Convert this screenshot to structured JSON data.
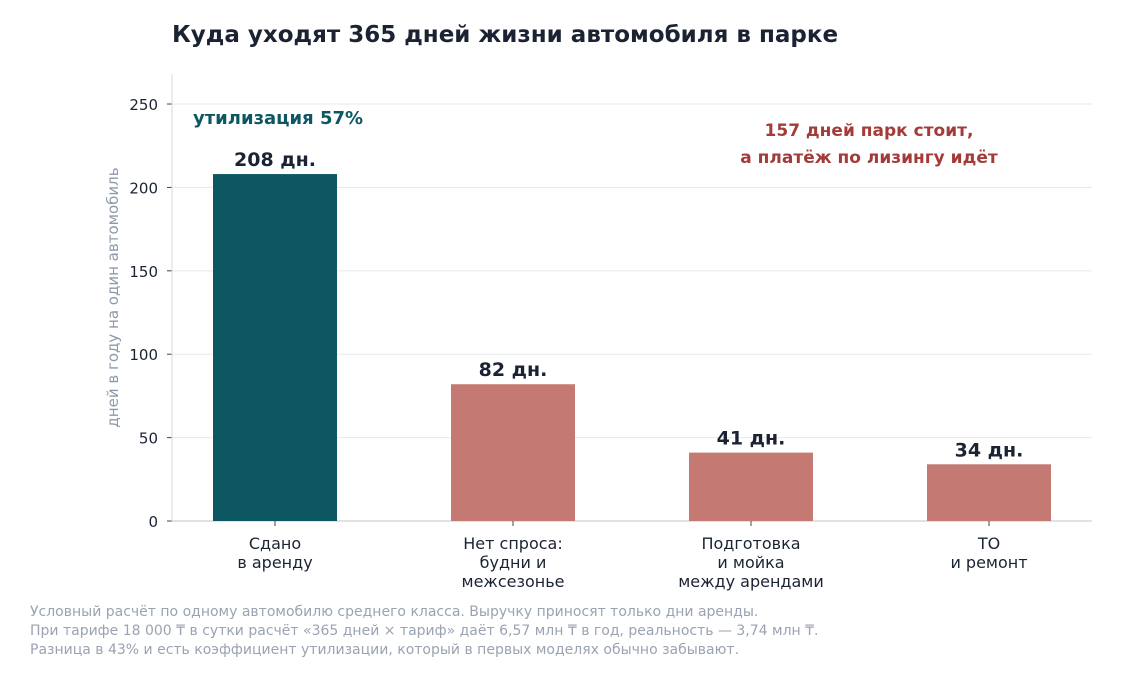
{
  "chart_data": {
    "type": "bar",
    "title": "Куда уходят 365 дней жизни автомобиля в парке",
    "ylabel": "дней в году на один автомобиль",
    "xlabel": "",
    "ylim": [
      0,
      268
    ],
    "yticks": [
      0,
      50,
      100,
      150,
      200,
      250
    ],
    "grid": true,
    "categories": [
      [
        "Сдано",
        "в аренду"
      ],
      [
        "Нет спроса:",
        "будни и",
        "межсезонье"
      ],
      [
        "Подготовка",
        "и мойка",
        "между арендами"
      ],
      [
        "ТО",
        "и ремонт"
      ]
    ],
    "values": [
      208,
      82,
      41,
      34
    ],
    "data_labels": [
      "208 дн.",
      "82 дн.",
      "41 дн.",
      "34 дн."
    ],
    "colors": [
      "#0c5762",
      "#c47a72",
      "#c47a72",
      "#c47a72"
    ],
    "annotations": {
      "utilization": {
        "text": "утилизация 57%",
        "color": "#0c5762"
      },
      "idle": {
        "lines": [
          "157 дней парк стоит,",
          "а платёж по лизингу идёт"
        ],
        "color": "#a33c38"
      }
    }
  },
  "footnote": [
    "Условный расчёт по одному автомобилю среднего класса. Выручку приносят только дни аренды.",
    "При тарифе 18 000 ₸ в сутки расчёт «365 дней × тариф» даёт 6,57 млн ₸ в год, реальность — 3,74 млн ₸.",
    "Разница в 43% и есть коэффициент утилизации, который в первых моделях обычно забывают."
  ],
  "colors": {
    "text": "#1b2333",
    "axis_label": "#8d99aa",
    "grid": "#e6e8ec",
    "axis": "#d5d8de"
  }
}
